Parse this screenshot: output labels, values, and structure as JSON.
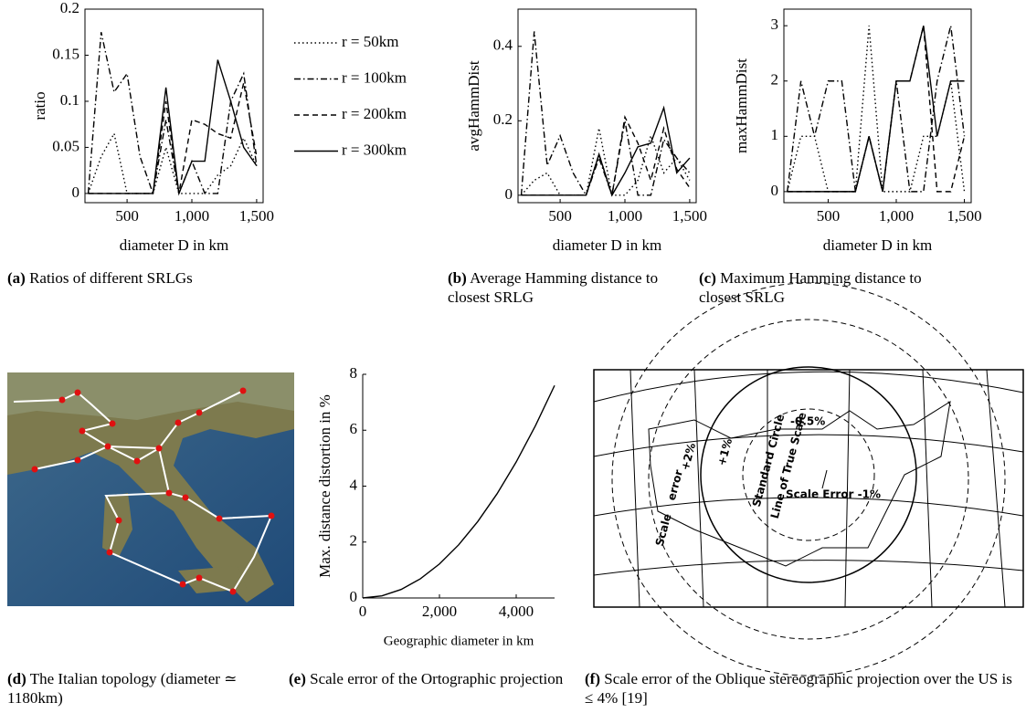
{
  "chart_data": [
    {
      "type": "line",
      "ylabel": "ratio",
      "xlabel": "diameter D in km",
      "box": true,
      "x": [
        200,
        300,
        400,
        500,
        600,
        700,
        800,
        900,
        1000,
        1100,
        1200,
        1300,
        1400,
        1500
      ],
      "series": [
        {
          "name": "r = 50km",
          "dash": "dotted",
          "color": "#000000",
          "values": [
            0,
            0.04,
            0.065,
            0,
            0,
            0,
            0.05,
            0,
            0,
            0,
            0.02,
            0.03,
            0.06,
            0.03
          ]
        },
        {
          "name": "r = 100km",
          "dash": "dashdot",
          "color": "#000000",
          "values": [
            0,
            0.175,
            0.11,
            0.13,
            0.04,
            0,
            0.08,
            0,
            0.035,
            0,
            0,
            0.1,
            0.13,
            0.03
          ]
        },
        {
          "name": "r = 200km",
          "dash": "dashed",
          "color": "#000000",
          "values": [
            0,
            0,
            0,
            0,
            0,
            0,
            0.1,
            0,
            0.08,
            0.075,
            0.065,
            0.06,
            0.12,
            0.04
          ]
        },
        {
          "name": "r = 300km",
          "dash": "solid",
          "color": "#000000",
          "values": [
            0,
            0,
            0,
            0,
            0,
            0,
            0.115,
            0,
            0.035,
            0.035,
            0.145,
            0.1,
            0.05,
            0.03
          ]
        }
      ],
      "xlim": [
        175,
        1550
      ],
      "ylim": [
        -0.01,
        0.2
      ],
      "xticks": [
        500,
        {
          "value": 1000,
          "label": "1,000"
        },
        {
          "value": 1500,
          "label": "1,500"
        }
      ],
      "yticks": [
        0,
        0.05,
        0.1,
        0.15,
        0.2
      ]
    },
    {
      "type": "line",
      "ylabel": "avgHammDist",
      "xlabel": "diameter D in km",
      "box": true,
      "x": [
        200,
        300,
        400,
        500,
        600,
        700,
        800,
        900,
        1000,
        1100,
        1200,
        1300,
        1400,
        1500
      ],
      "series": [
        {
          "dash": "dotted",
          "color": "#000000",
          "values": [
            0,
            0.04,
            0.06,
            0,
            0,
            0,
            0.18,
            0,
            0,
            0.04,
            0.16,
            0.06,
            0.1,
            0.04
          ]
        },
        {
          "dash": "dashdot",
          "color": "#000000",
          "values": [
            0,
            0.44,
            0.08,
            0.16,
            0.06,
            0,
            0.1,
            0,
            0.2,
            0,
            0,
            0.15,
            0.1,
            0.06
          ]
        },
        {
          "dash": "dashed",
          "color": "#000000",
          "values": [
            0,
            0,
            0,
            0,
            0,
            0,
            0.11,
            0,
            0.21,
            0.14,
            0.04,
            0.18,
            0.07,
            0.02
          ]
        },
        {
          "dash": "solid",
          "color": "#000000",
          "values": [
            0,
            0,
            0,
            0,
            0,
            0,
            0.11,
            0,
            0.06,
            0.13,
            0.14,
            0.235,
            0.06,
            0.1
          ]
        }
      ],
      "xlim": [
        175,
        1550
      ],
      "ylim": [
        -0.02,
        0.5
      ],
      "xticks": [
        500,
        {
          "value": 1000,
          "label": "1,000"
        },
        {
          "value": 1500,
          "label": "1,500"
        }
      ],
      "yticks": [
        0,
        0.2,
        0.4
      ]
    },
    {
      "type": "line",
      "ylabel": "maxHammDist",
      "xlabel": "diameter D in km",
      "box": true,
      "x": [
        200,
        300,
        400,
        500,
        600,
        700,
        800,
        900,
        1000,
        1100,
        1200,
        1300,
        1400,
        1500
      ],
      "series": [
        {
          "dash": "dotted",
          "color": "#000000",
          "values": [
            0,
            1,
            1,
            0,
            0,
            0,
            3,
            0,
            0,
            0,
            1,
            1,
            2,
            0
          ]
        },
        {
          "dash": "dashdot",
          "color": "#000000",
          "values": [
            0,
            2,
            1,
            2,
            2,
            0,
            1,
            0,
            2,
            0,
            0,
            2,
            3,
            1
          ]
        },
        {
          "dash": "dashed",
          "color": "#000000",
          "values": [
            0,
            0,
            0,
            0,
            0,
            0,
            1,
            0,
            2,
            2,
            3,
            0,
            0,
            1
          ]
        },
        {
          "dash": "solid",
          "color": "#000000",
          "values": [
            0,
            0,
            0,
            0,
            0,
            0,
            1,
            0,
            2,
            2,
            3,
            1,
            2,
            2
          ]
        }
      ],
      "xlim": [
        175,
        1550
      ],
      "ylim": [
        -0.2,
        3.3
      ],
      "xticks": [
        500,
        {
          "value": 1000,
          "label": "1,000"
        },
        {
          "value": 1500,
          "label": "1,500"
        }
      ],
      "yticks": [
        0,
        1,
        2,
        3
      ]
    },
    {
      "type": "line",
      "ylabel": "Max. distance distortion in %",
      "xlabel": "Geographic diameter in km",
      "box": false,
      "x": [
        0,
        500,
        1000,
        1500,
        2000,
        2500,
        3000,
        3500,
        4000,
        4500,
        5000
      ],
      "series": [
        {
          "dash": "solid",
          "color": "#000000",
          "values": [
            0,
            0.076,
            0.304,
            0.684,
            1.216,
            1.9,
            2.736,
            3.724,
            4.864,
            6.156,
            7.6
          ]
        }
      ],
      "xlim": [
        0,
        5000
      ],
      "ylim": [
        0,
        8
      ],
      "xticks": [
        0,
        {
          "value": 2000,
          "label": "2,000"
        },
        {
          "value": 4000,
          "label": "4,000"
        }
      ],
      "yticks": [
        0,
        2,
        4,
        6,
        8
      ]
    }
  ],
  "captions": [
    {
      "label": "(a)",
      "text": "Ratios of different SRLGs"
    },
    {
      "label": "(b)",
      "text": "Average Hamming distance to closest SRLG"
    },
    {
      "label": "(c)",
      "text": "Maximum Hamming distance to closest SRLG"
    },
    {
      "label": "(d)",
      "text": "The Italian topology (diameter ≃ 1180km)"
    },
    {
      "label": "(e)",
      "text": "Scale error of the Ortographic projection"
    },
    {
      "label": "(f)",
      "text": "Scale error of the Oblique stereographic projection over the US is ≤ 4% [19]"
    }
  ],
  "scale_diagram": {
    "labels": [
      "-0.5%",
      "+2%",
      "+1%",
      "Scale",
      "error",
      "Standard Circle",
      "Line of True Scale",
      "Scale Error -1%"
    ]
  }
}
